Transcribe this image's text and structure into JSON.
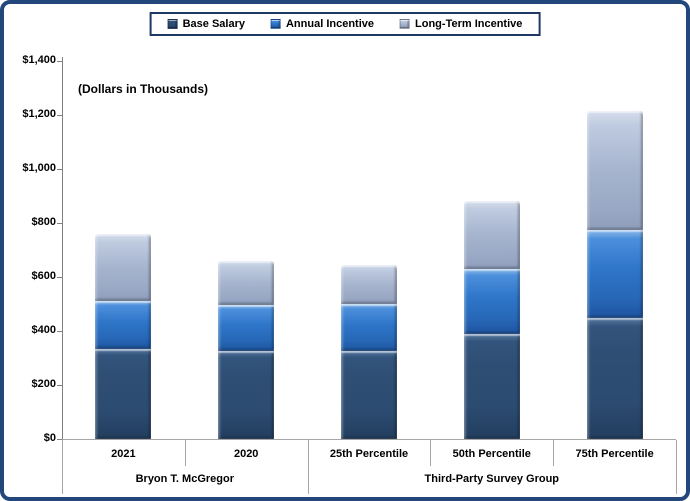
{
  "window": {
    "frame_color": "#24477B",
    "background": "#FFFFFF"
  },
  "legend": {
    "border_color": "#1F3864",
    "items": [
      {
        "label": "Base Salary",
        "color": "#2E4E74"
      },
      {
        "label": "Annual Incentive",
        "color": "#2E75C8"
      },
      {
        "label": "Long-Term Incentive",
        "color": "#A6B4CE"
      }
    ]
  },
  "annotation": "(Dollars in Thousands)",
  "chart_data": {
    "type": "bar",
    "stacked": true,
    "title": "",
    "xlabel": "",
    "ylabel": "(Dollars in Thousands)",
    "ylim": [
      0,
      1400
    ],
    "y_tick_step": 200,
    "y_ticks": [
      "$1,400",
      "$1,200",
      "$1,000",
      "$800",
      "$600",
      "$400",
      "$200",
      "$0"
    ],
    "grid": false,
    "legend_position": "top",
    "categories": [
      "2021",
      "2020",
      "25th Percentile",
      "50th Percentile",
      "75th Percentile"
    ],
    "groups": [
      {
        "label": "Bryon T. McGregor",
        "start": 0,
        "end": 1
      },
      {
        "label": "Third-Party Survey Group",
        "start": 2,
        "end": 4
      }
    ],
    "series": [
      {
        "name": "Base Salary",
        "color": "#2E4E74",
        "values": [
          335,
          325,
          325,
          390,
          450
        ]
      },
      {
        "name": "Annual Incentive",
        "color": "#2E75C8",
        "values": [
          175,
          170,
          175,
          240,
          325
        ]
      },
      {
        "name": "Long-Term Incentive",
        "color": "#A6B4CE",
        "values": [
          250,
          165,
          145,
          250,
          440
        ]
      }
    ],
    "totals": [
      760,
      660,
      645,
      880,
      1215
    ]
  }
}
